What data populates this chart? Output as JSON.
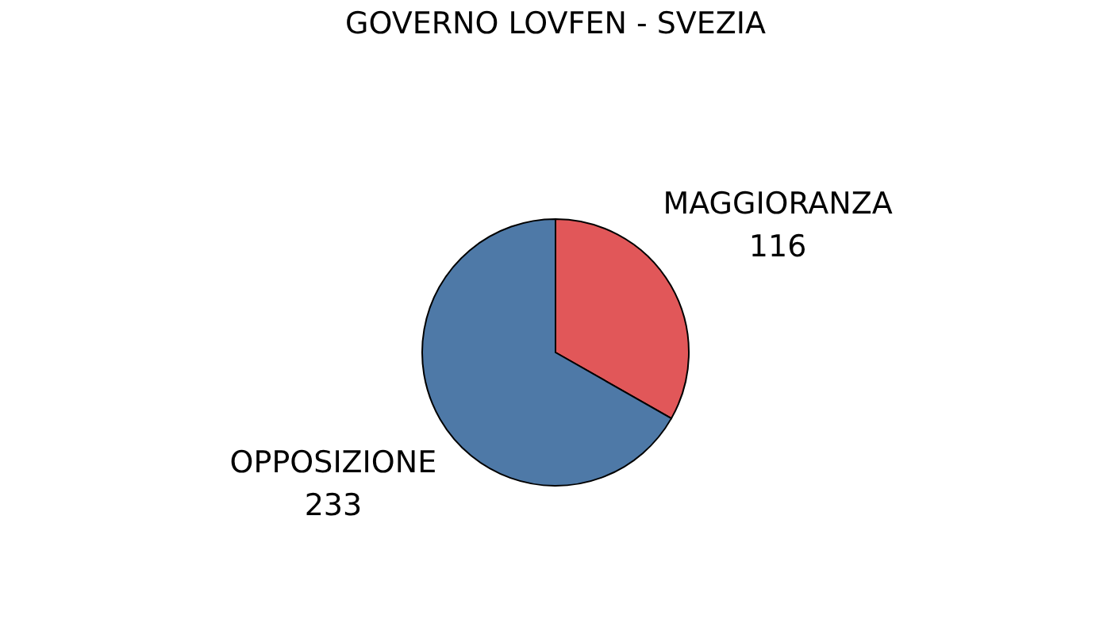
{
  "chart_data": {
    "type": "pie",
    "title": "GOVERNO LOVFEN - SVEZIA",
    "categories": [
      "MAGGIORANZA",
      "OPPOSIZIONE"
    ],
    "values": [
      116,
      233
    ],
    "colors": [
      "#e15759",
      "#4e79a7"
    ],
    "data_labels": true
  }
}
